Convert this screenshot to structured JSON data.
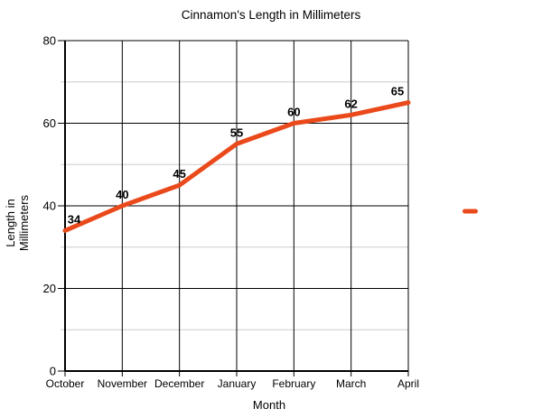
{
  "title": "Cinnamon's Length in Millimeters",
  "chart_data": {
    "type": "line",
    "title": "Cinnamon's Length in Millimeters",
    "categories": [
      "October",
      "November",
      "December",
      "January",
      "February",
      "March",
      "April"
    ],
    "series": [
      {
        "name": "",
        "values": [
          34,
          40,
          45,
          55,
          60,
          62,
          65
        ],
        "color": "#EA4A1B"
      }
    ],
    "xlabel": "Month",
    "ylabel": "Length in Millimeters",
    "ylabel_lines": [
      "Length in",
      "Millimeters"
    ],
    "ylim": [
      0,
      80
    ],
    "y_major_ticks": [
      0,
      20,
      40,
      60,
      80
    ],
    "y_minor_ticks": [
      10,
      30,
      50,
      70
    ],
    "grid": "major-black-minor-gray",
    "data_labels": [
      34,
      40,
      45,
      55,
      60,
      62,
      65
    ],
    "legend_position": "right",
    "legend_label": ""
  },
  "colors": {
    "line": "#EA4A1B",
    "major_grid": "#000000",
    "minor_grid": "#cccccc",
    "text": "#000000",
    "background": "#ffffff"
  }
}
